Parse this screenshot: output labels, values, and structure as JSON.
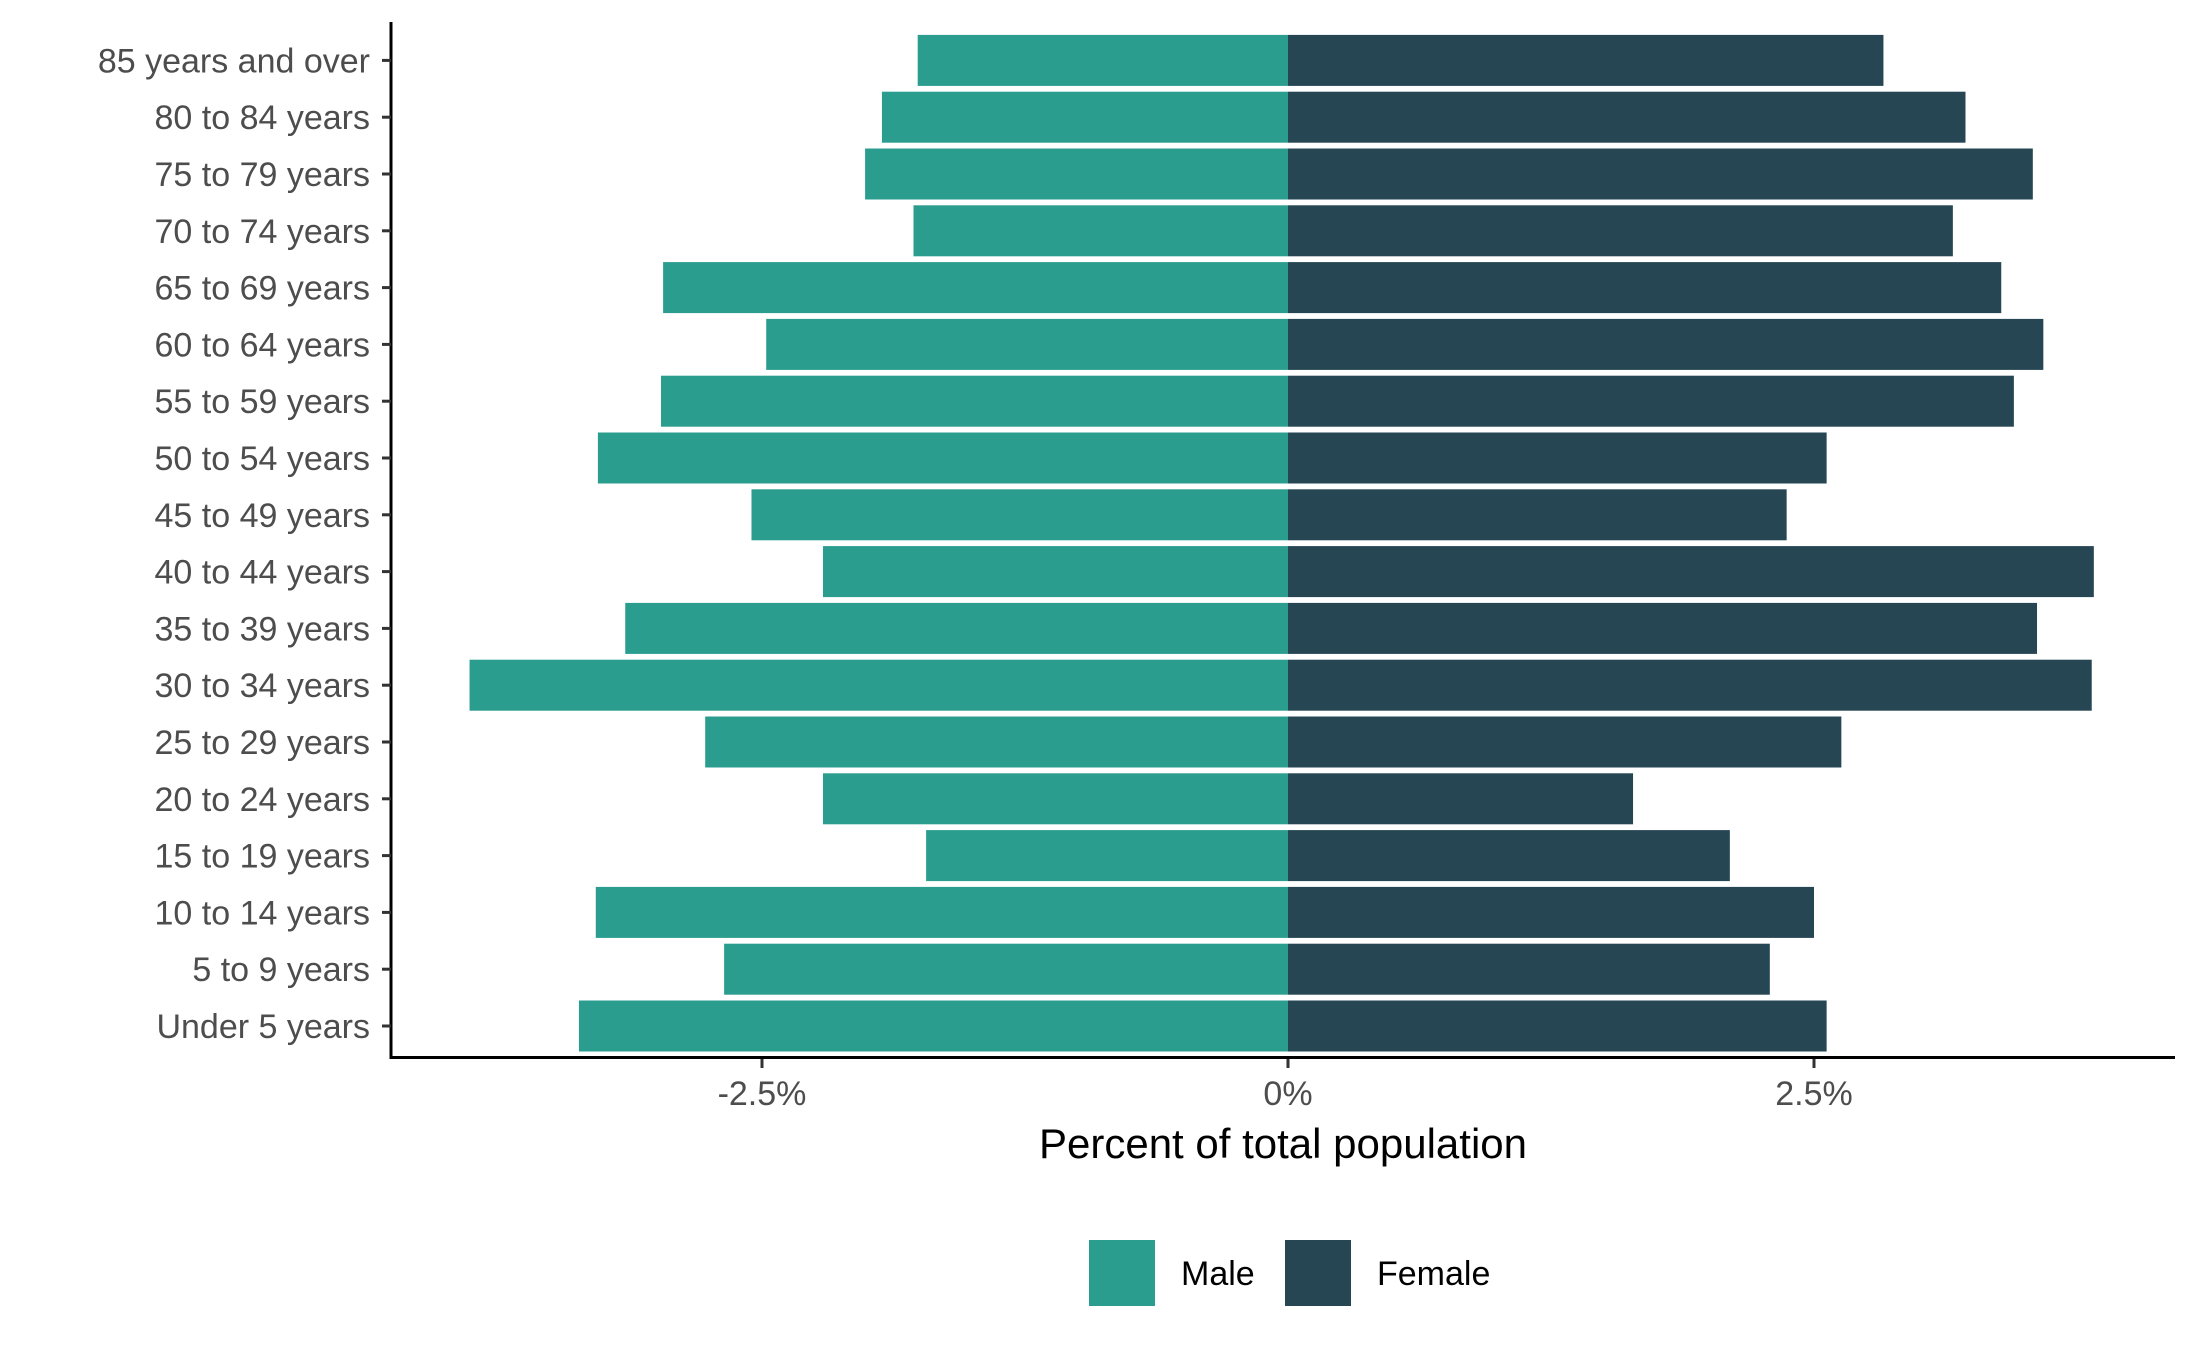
{
  "chart_data": {
    "type": "bar",
    "orientation": "horizontal",
    "layout": "population-pyramid",
    "categories": [
      "Under 5 years",
      "5 to 9 years",
      "10 to 14 years",
      "15 to 19 years",
      "20 to 24 years",
      "25 to 29 years",
      "30 to 34 years",
      "35 to 39 years",
      "40 to 44 years",
      "45 to 49 years",
      "50 to 54 years",
      "55 to 59 years",
      "60 to 64 years",
      "65 to 69 years",
      "70 to 74 years",
      "75 to 79 years",
      "80 to 84 years",
      "85 years and over"
    ],
    "series": [
      {
        "name": "Male",
        "color": "#2a9d8f",
        "values": [
          -3.37,
          -2.68,
          -3.29,
          -1.72,
          -2.21,
          -2.77,
          -3.89,
          -3.15,
          -2.21,
          -2.55,
          -3.28,
          -2.98,
          -2.48,
          -2.97,
          -1.78,
          -2.01,
          -1.93,
          -1.76
        ]
      },
      {
        "name": "Female",
        "color": "#264653",
        "values": [
          2.56,
          2.29,
          2.5,
          2.1,
          1.64,
          2.63,
          3.82,
          3.56,
          3.83,
          2.37,
          2.56,
          3.45,
          3.59,
          3.39,
          3.16,
          3.54,
          3.22,
          2.83
        ]
      }
    ],
    "xlabel": "Percent of total population",
    "ylabel": "",
    "xlim": [
      -4.25,
      4.25
    ],
    "xticks": [
      {
        "value": -2.5,
        "label": "-2.5%"
      },
      {
        "value": 0,
        "label": "0%"
      },
      {
        "value": 2.5,
        "label": "2.5%"
      }
    ],
    "grid": false,
    "legend": {
      "position": "bottom",
      "items": [
        {
          "label": "Male",
          "color": "#2a9d8f"
        },
        {
          "label": "Female",
          "color": "#264653"
        }
      ]
    }
  }
}
